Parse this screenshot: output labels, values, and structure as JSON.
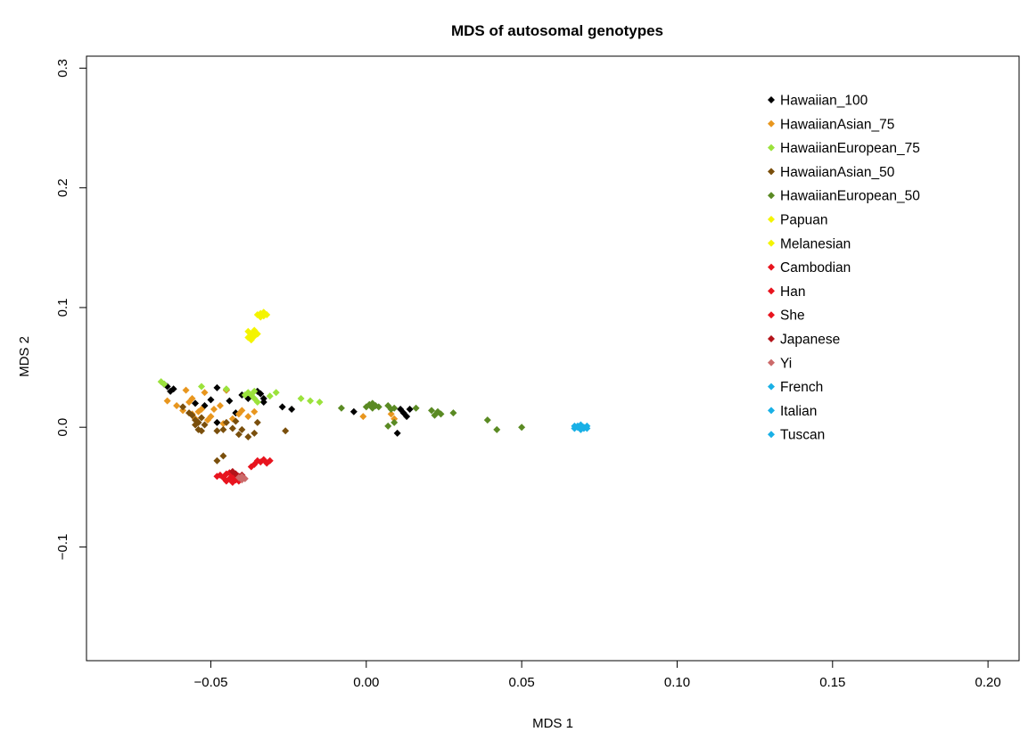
{
  "chart_data": {
    "type": "scatter",
    "title": "MDS of autosomal genotypes",
    "xlabel": "MDS 1",
    "ylabel": "MDS 2",
    "xlim": [
      -0.09,
      0.21
    ],
    "ylim": [
      -0.195,
      0.31
    ],
    "xticks": [
      -0.05,
      0.0,
      0.05,
      0.1,
      0.15,
      0.2
    ],
    "xtick_labels": [
      "−0.05",
      "0.00",
      "0.05",
      "0.10",
      "0.15",
      "0.20"
    ],
    "yticks": [
      -0.1,
      0.0,
      0.1,
      0.2,
      0.3
    ],
    "ytick_labels": [
      "−0.1",
      "0.0",
      "0.1",
      "0.2",
      "0.3"
    ],
    "grid": false,
    "legend_position": "top-right",
    "marker": "diamond",
    "series": [
      {
        "name": "Hawaiian_100",
        "color": "#000000",
        "points": [
          [
            -0.065,
            0.036
          ],
          [
            -0.064,
            0.034
          ],
          [
            -0.063,
            0.03
          ],
          [
            -0.062,
            0.032
          ],
          [
            -0.055,
            0.02
          ],
          [
            -0.052,
            0.018
          ],
          [
            -0.05,
            0.023
          ],
          [
            -0.048,
            0.033
          ],
          [
            -0.045,
            0.031
          ],
          [
            -0.044,
            0.022
          ],
          [
            -0.048,
            0.004
          ],
          [
            -0.042,
            0.012
          ],
          [
            -0.04,
            0.027
          ],
          [
            -0.038,
            0.024
          ],
          [
            -0.035,
            0.03
          ],
          [
            -0.034,
            0.028
          ],
          [
            -0.033,
            0.024
          ],
          [
            -0.033,
            0.021
          ],
          [
            -0.027,
            0.017
          ],
          [
            -0.024,
            0.015
          ],
          [
            -0.004,
            0.013
          ],
          [
            0.01,
            -0.005
          ],
          [
            0.011,
            0.015
          ],
          [
            0.012,
            0.012
          ],
          [
            0.013,
            0.009
          ],
          [
            0.014,
            0.015
          ]
        ]
      },
      {
        "name": "HawaiianAsian_75",
        "color": "#e8961e",
        "points": [
          [
            -0.064,
            0.022
          ],
          [
            -0.061,
            0.018
          ],
          [
            -0.059,
            0.014
          ],
          [
            -0.058,
            0.031
          ],
          [
            -0.057,
            0.021
          ],
          [
            -0.056,
            0.024
          ],
          [
            -0.056,
            0.011
          ],
          [
            -0.055,
            0.007
          ],
          [
            -0.054,
            0.013
          ],
          [
            -0.053,
            0.015
          ],
          [
            -0.052,
            0.029
          ],
          [
            -0.051,
            0.006
          ],
          [
            -0.05,
            0.009
          ],
          [
            -0.049,
            0.015
          ],
          [
            -0.047,
            0.018
          ],
          [
            -0.045,
            0.031
          ],
          [
            -0.046,
            0.003
          ],
          [
            -0.043,
            0.007
          ],
          [
            -0.041,
            0.011
          ],
          [
            -0.04,
            0.014
          ],
          [
            -0.038,
            0.009
          ],
          [
            -0.036,
            0.013
          ],
          [
            -0.001,
            0.009
          ],
          [
            0.008,
            0.011
          ],
          [
            0.009,
            0.007
          ]
        ]
      },
      {
        "name": "HawaiianEuropean_75",
        "color": "#9be23c",
        "points": [
          [
            -0.066,
            0.038
          ],
          [
            -0.065,
            0.036
          ],
          [
            -0.053,
            0.034
          ],
          [
            -0.045,
            0.032
          ],
          [
            -0.039,
            0.027
          ],
          [
            -0.038,
            0.029
          ],
          [
            -0.037,
            0.027
          ],
          [
            -0.036,
            0.03
          ],
          [
            -0.036,
            0.024
          ],
          [
            -0.035,
            0.021
          ],
          [
            -0.031,
            0.026
          ],
          [
            -0.029,
            0.029
          ],
          [
            -0.021,
            0.024
          ],
          [
            -0.018,
            0.022
          ],
          [
            -0.015,
            0.021
          ]
        ]
      },
      {
        "name": "HawaiianAsian_50",
        "color": "#7a4f0c",
        "points": [
          [
            -0.059,
            0.017
          ],
          [
            -0.057,
            0.012
          ],
          [
            -0.056,
            0.01
          ],
          [
            -0.055,
            0.006
          ],
          [
            -0.055,
            0.002
          ],
          [
            -0.054,
            -0.002
          ],
          [
            -0.054,
            0.004
          ],
          [
            -0.053,
            0.008
          ],
          [
            -0.053,
            -0.003
          ],
          [
            -0.052,
            0.002
          ],
          [
            -0.048,
            -0.003
          ],
          [
            -0.046,
            -0.002
          ],
          [
            -0.045,
            0.004
          ],
          [
            -0.043,
            -0.001
          ],
          [
            -0.042,
            0.005
          ],
          [
            -0.041,
            -0.006
          ],
          [
            -0.04,
            -0.002
          ],
          [
            -0.038,
            -0.008
          ],
          [
            -0.036,
            -0.005
          ],
          [
            -0.035,
            0.004
          ],
          [
            -0.026,
            -0.003
          ],
          [
            -0.048,
            -0.028
          ],
          [
            -0.046,
            -0.024
          ]
        ]
      },
      {
        "name": "HawaiianEuropean_50",
        "color": "#5a8a23",
        "points": [
          [
            -0.008,
            0.016
          ],
          [
            0.0,
            0.017
          ],
          [
            0.001,
            0.019
          ],
          [
            0.002,
            0.02
          ],
          [
            0.002,
            0.016
          ],
          [
            0.003,
            0.018
          ],
          [
            0.004,
            0.017
          ],
          [
            0.007,
            0.018
          ],
          [
            0.008,
            0.015
          ],
          [
            0.009,
            0.016
          ],
          [
            0.009,
            0.004
          ],
          [
            0.007,
            0.001
          ],
          [
            0.016,
            0.016
          ],
          [
            0.021,
            0.014
          ],
          [
            0.022,
            0.01
          ],
          [
            0.023,
            0.013
          ],
          [
            0.024,
            0.011
          ],
          [
            0.028,
            0.012
          ],
          [
            0.039,
            0.006
          ],
          [
            0.042,
            -0.002
          ],
          [
            0.05,
            0.0
          ]
        ]
      },
      {
        "name": "Papuan",
        "color": "#f4f400",
        "points": [
          [
            -0.035,
            0.094
          ],
          [
            -0.034,
            0.095
          ],
          [
            -0.033,
            0.093
          ],
          [
            -0.032,
            0.094
          ],
          [
            -0.034,
            0.092
          ],
          [
            -0.033,
            0.096
          ]
        ]
      },
      {
        "name": "Melanesian",
        "color": "#f4f400",
        "points": [
          [
            -0.038,
            0.08
          ],
          [
            -0.037,
            0.078
          ],
          [
            -0.036,
            0.076
          ],
          [
            -0.037,
            0.073
          ],
          [
            -0.036,
            0.081
          ],
          [
            -0.038,
            0.075
          ],
          [
            -0.035,
            0.078
          ]
        ]
      },
      {
        "name": "Cambodian",
        "color": "#e8141e",
        "points": [
          [
            -0.035,
            -0.028
          ],
          [
            -0.034,
            -0.029
          ],
          [
            -0.033,
            -0.027
          ],
          [
            -0.032,
            -0.03
          ],
          [
            -0.031,
            -0.028
          ]
        ]
      },
      {
        "name": "Han",
        "color": "#e8141e",
        "points": [
          [
            -0.048,
            -0.041
          ],
          [
            -0.047,
            -0.04
          ],
          [
            -0.046,
            -0.042
          ],
          [
            -0.045,
            -0.039
          ],
          [
            -0.044,
            -0.043
          ],
          [
            -0.043,
            -0.041
          ],
          [
            -0.042,
            -0.044
          ],
          [
            -0.044,
            -0.038
          ],
          [
            -0.037,
            -0.033
          ],
          [
            -0.036,
            -0.031
          ]
        ]
      },
      {
        "name": "She",
        "color": "#e8141e",
        "points": [
          [
            -0.045,
            -0.045
          ],
          [
            -0.043,
            -0.046
          ],
          [
            -0.042,
            -0.042
          ],
          [
            -0.041,
            -0.045
          ]
        ]
      },
      {
        "name": "Japanese",
        "color": "#b4141a",
        "points": [
          [
            -0.043,
            -0.037
          ],
          [
            -0.042,
            -0.039
          ],
          [
            -0.041,
            -0.041
          ],
          [
            -0.04,
            -0.04
          ]
        ]
      },
      {
        "name": "Yi",
        "color": "#cc6a6a",
        "points": [
          [
            -0.041,
            -0.042
          ],
          [
            -0.04,
            -0.041
          ],
          [
            -0.039,
            -0.043
          ],
          [
            -0.04,
            -0.044
          ]
        ]
      },
      {
        "name": "French",
        "color": "#19b0e6",
        "points": [
          [
            0.067,
            -0.001
          ],
          [
            0.068,
            0.0
          ],
          [
            0.069,
            -0.002
          ],
          [
            0.068,
            0.001
          ]
        ]
      },
      {
        "name": "Italian",
        "color": "#19b0e6",
        "points": [
          [
            0.069,
            0.001
          ],
          [
            0.07,
            0.0
          ],
          [
            0.07,
            -0.001
          ],
          [
            0.071,
            0.001
          ]
        ]
      },
      {
        "name": "Tuscan",
        "color": "#19b0e6",
        "points": [
          [
            0.067,
            0.001
          ],
          [
            0.069,
            0.002
          ],
          [
            0.071,
            -0.001
          ]
        ]
      }
    ]
  }
}
